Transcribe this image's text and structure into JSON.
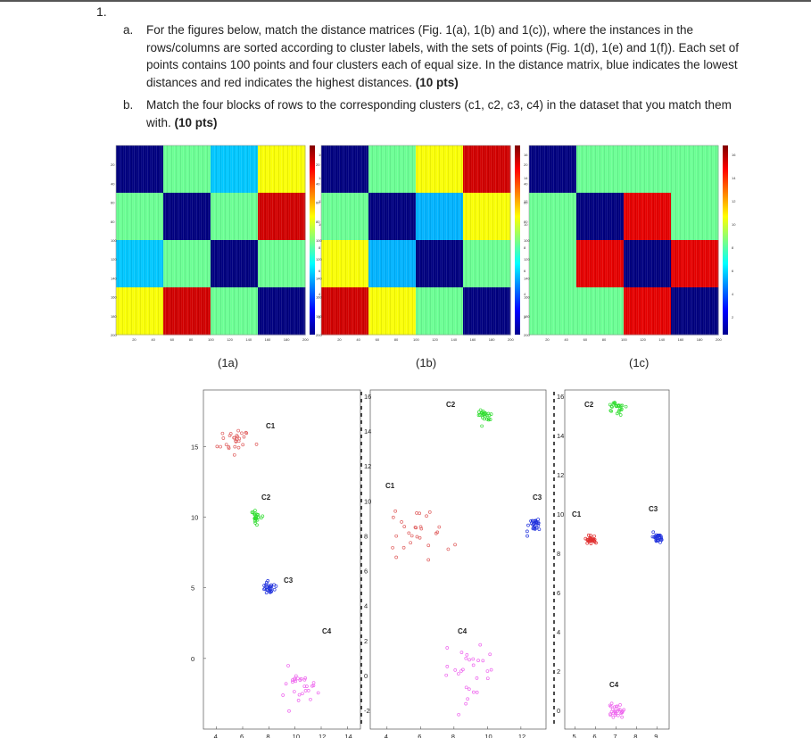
{
  "question_number": "1.",
  "part_a": {
    "label": "a.",
    "text": "For the figures below, match the distance matrices (Fig. 1(a), 1(b) and 1(c)), where the instances in the rows/columns are sorted according to cluster labels, with the sets of points (Fig. 1(d), 1(e) and 1(f)). Each set of points contains 100 points and four clusters each of equal size. In the distance matrix, blue indicates the lowest distances and red indicates the highest distances.",
    "points": "(10 pts)"
  },
  "part_b": {
    "label": "b.",
    "text": "Match the four blocks of rows to the corresponding clusters (c1, c2, c3, c4) in the dataset that you match them with.",
    "points": "(10 pts)"
  },
  "matrix_captions": [
    "(1a)",
    "(1b)",
    "(1c)"
  ],
  "heatmaps": [
    {
      "caption": "(1a)",
      "blocks": [
        [
          0.0,
          0.48,
          0.32,
          0.62
        ],
        [
          0.48,
          0.0,
          0.48,
          0.92
        ],
        [
          0.32,
          0.48,
          0.0,
          0.48
        ],
        [
          0.62,
          0.92,
          0.48,
          0.0
        ]
      ]
    },
    {
      "caption": "(1b)",
      "blocks": [
        [
          0.0,
          0.48,
          0.62,
          0.92
        ],
        [
          0.48,
          0.0,
          0.3,
          0.62
        ],
        [
          0.62,
          0.3,
          0.0,
          0.48
        ],
        [
          0.92,
          0.62,
          0.48,
          0.0
        ]
      ]
    },
    {
      "caption": "(1c)",
      "blocks": [
        [
          0.0,
          0.48,
          0.48,
          0.48
        ],
        [
          0.48,
          0.0,
          0.9,
          0.48
        ],
        [
          0.48,
          0.9,
          0.0,
          0.9
        ],
        [
          0.48,
          0.48,
          0.9,
          0.0
        ]
      ]
    }
  ],
  "matrix_ticks": [
    "20",
    "40",
    "60",
    "80",
    "100",
    "120",
    "140",
    "160",
    "180",
    "200"
  ],
  "colorbar_ticks": [
    "16",
    "14",
    "12",
    "10",
    "8",
    "6",
    "4",
    "2"
  ],
  "scatter_d": {
    "y_ticks": [
      "15",
      "10",
      "5",
      "0"
    ],
    "x_ticks": [
      "4",
      "6",
      "8",
      "10",
      "12",
      "14"
    ],
    "clusters": [
      {
        "label": "C1",
        "color": "#e06060",
        "cx": 5.5,
        "cy": 15.5,
        "s": 0.55
      },
      {
        "label": "C2",
        "color": "#33dd33",
        "cx": 7.0,
        "cy": 10.0,
        "s": 0.22
      },
      {
        "label": "C3",
        "color": "#2233dd",
        "cx": 8.0,
        "cy": 5.0,
        "s": 0.22
      },
      {
        "label": "C4",
        "color": "#ee66ee",
        "cx": 10.5,
        "cy": -1.5,
        "s": 0.8
      }
    ]
  },
  "scatter_e": {
    "y_ticks": [
      "16",
      "14",
      "12",
      "10",
      "8",
      "6",
      "4",
      "2",
      "0",
      "-2"
    ],
    "x_ticks": [
      "4",
      "6",
      "8",
      "10",
      "12"
    ],
    "clusters": [
      {
        "label": "C1",
        "color": "#e06060",
        "cx": 6.0,
        "cy": 8.8,
        "s": 0.75
      },
      {
        "label": "C2",
        "color": "#33dd33",
        "cx": 9.8,
        "cy": 16.0,
        "s": 0.22
      },
      {
        "label": "C3",
        "color": "#2233dd",
        "cx": 12.8,
        "cy": 9.3,
        "s": 0.22
      },
      {
        "label": "C4",
        "color": "#ee66ee",
        "cx": 9.0,
        "cy": 0.5,
        "s": 0.85
      }
    ]
  },
  "scatter_f": {
    "y_ticks": [
      "16",
      "14",
      "12",
      "10",
      "8",
      "6",
      "4",
      "2",
      "0"
    ],
    "x_ticks": [
      "5",
      "6",
      "7",
      "8",
      "9"
    ],
    "clusters": [
      {
        "label": "C1",
        "color": "#e03030",
        "cx": 5.8,
        "cy": 8.7,
        "s": 0.12
      },
      {
        "label": "C2",
        "color": "#33dd33",
        "cx": 7.0,
        "cy": 16.0,
        "s": 0.18
      },
      {
        "label": "C3",
        "color": "#2233dd",
        "cx": 9.0,
        "cy": 8.8,
        "s": 0.15
      },
      {
        "label": "C4",
        "color": "#ee66ee",
        "cx": 7.0,
        "cy": -0.8,
        "s": 0.18
      }
    ]
  }
}
